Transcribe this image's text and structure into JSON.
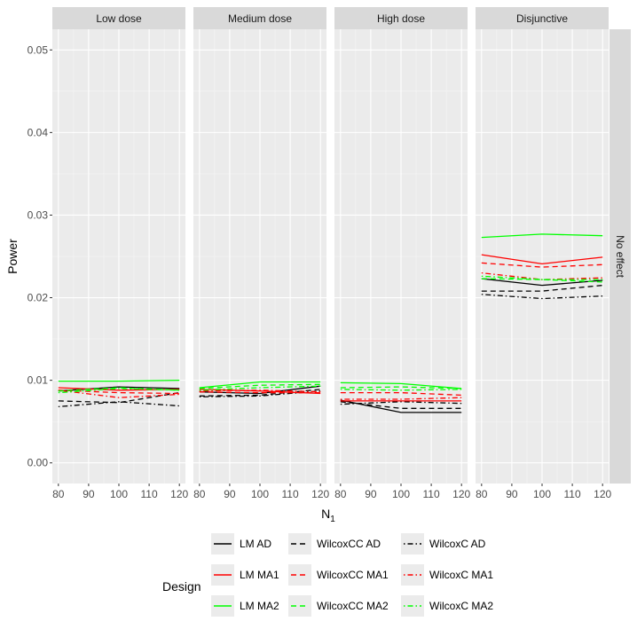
{
  "chart_data": {
    "type": "line",
    "ylabel": "Power",
    "xlabel_main": "N",
    "xlabel_sub": "1",
    "ylim": [
      -0.0025,
      0.0525
    ],
    "xlim": [
      78,
      122
    ],
    "y_ticks": [
      0.0,
      0.01,
      0.02,
      0.03,
      0.04,
      0.05
    ],
    "y_tick_labels": [
      "0.00",
      "0.01",
      "0.02",
      "0.03",
      "0.04",
      "0.05"
    ],
    "x_ticks": [
      80,
      90,
      100,
      110,
      120
    ],
    "x_tick_labels": [
      "80",
      "90",
      "100",
      "110",
      "120"
    ],
    "x": [
      80,
      100,
      120
    ],
    "row_strip": "No effect",
    "grid": true,
    "legend": {
      "title": "Design",
      "placement": "bottom",
      "entries": [
        "LM AD",
        "WilcoxCC AD",
        "WilcoxC AD",
        "LM MA1",
        "WilcoxCC MA1",
        "WilcoxC MA1",
        "LM MA2",
        "WilcoxCC MA2",
        "WilcoxC MA2"
      ]
    },
    "series_styles": {
      "LM AD": {
        "color": "#000000",
        "dash": "solid"
      },
      "WilcoxCC AD": {
        "color": "#000000",
        "dash": "dashed"
      },
      "WilcoxC AD": {
        "color": "#000000",
        "dash": "dotdash"
      },
      "LM MA1": {
        "color": "#ff0000",
        "dash": "solid"
      },
      "WilcoxCC MA1": {
        "color": "#ff0000",
        "dash": "dashed"
      },
      "WilcoxC MA1": {
        "color": "#ff0000",
        "dash": "dotdash"
      },
      "LM MA2": {
        "color": "#00ff00",
        "dash": "solid"
      },
      "WilcoxCC MA2": {
        "color": "#00ff00",
        "dash": "dashed"
      },
      "WilcoxC MA2": {
        "color": "#00ff00",
        "dash": "dotdash"
      }
    },
    "panels": [
      {
        "title": "Low dose",
        "series": [
          {
            "name": "LM AD",
            "values": [
              0.0087,
              0.0092,
              0.009
            ]
          },
          {
            "name": "WilcoxCC AD",
            "values": [
              0.0075,
              0.0073,
              0.0085
            ]
          },
          {
            "name": "WilcoxC AD",
            "values": [
              0.0068,
              0.0074,
              0.0069
            ]
          },
          {
            "name": "LM MA1",
            "values": [
              0.0091,
              0.0088,
              0.0089
            ]
          },
          {
            "name": "WilcoxCC MA1",
            "values": [
              0.0088,
              0.0085,
              0.0084
            ]
          },
          {
            "name": "WilcoxC MA1",
            "values": [
              0.0088,
              0.0079,
              0.0083
            ]
          },
          {
            "name": "LM MA2",
            "values": [
              0.0099,
              0.0099,
              0.01
            ]
          },
          {
            "name": "WilcoxCC MA2",
            "values": [
              0.0087,
              0.0091,
              0.0088
            ]
          },
          {
            "name": "WilcoxC MA2",
            "values": [
              0.0085,
              0.009,
              0.0088
            ]
          }
        ]
      },
      {
        "title": "Medium dose",
        "series": [
          {
            "name": "LM AD",
            "values": [
              0.0086,
              0.0084,
              0.0093
            ]
          },
          {
            "name": "WilcoxCC AD",
            "values": [
              0.0081,
              0.0082,
              0.0089
            ]
          },
          {
            "name": "WilcoxC AD",
            "values": [
              0.008,
              0.0081,
              0.0087
            ]
          },
          {
            "name": "LM MA1",
            "values": [
              0.0089,
              0.0087,
              0.0084
            ]
          },
          {
            "name": "WilcoxCC MA1",
            "values": [
              0.0086,
              0.0085,
              0.0085
            ]
          },
          {
            "name": "WilcoxC MA1",
            "values": [
              0.0087,
              0.0088,
              0.0086
            ]
          },
          {
            "name": "LM MA2",
            "values": [
              0.0091,
              0.0098,
              0.0098
            ]
          },
          {
            "name": "WilcoxCC MA2",
            "values": [
              0.009,
              0.0094,
              0.0095
            ]
          },
          {
            "name": "WilcoxC MA2",
            "values": [
              0.0088,
              0.0091,
              0.0093
            ]
          }
        ]
      },
      {
        "title": "High dose",
        "series": [
          {
            "name": "LM AD",
            "values": [
              0.0076,
              0.0061,
              0.0061
            ]
          },
          {
            "name": "WilcoxCC AD",
            "values": [
              0.0074,
              0.0066,
              0.0066
            ]
          },
          {
            "name": "WilcoxC AD",
            "values": [
              0.0071,
              0.0074,
              0.0072
            ]
          },
          {
            "name": "LM MA1",
            "values": [
              0.0075,
              0.0075,
              0.0075
            ]
          },
          {
            "name": "WilcoxCC MA1",
            "values": [
              0.0085,
              0.0085,
              0.0082
            ]
          },
          {
            "name": "WilcoxC MA1",
            "values": [
              0.0077,
              0.0077,
              0.0079
            ]
          },
          {
            "name": "LM MA2",
            "values": [
              0.0097,
              0.0096,
              0.009
            ]
          },
          {
            "name": "WilcoxCC MA2",
            "values": [
              0.0091,
              0.0092,
              0.009
            ]
          },
          {
            "name": "WilcoxC MA2",
            "values": [
              0.0089,
              0.0088,
              0.0089
            ]
          }
        ]
      },
      {
        "title": "Disjunctive",
        "series": [
          {
            "name": "LM AD",
            "values": [
              0.0223,
              0.0215,
              0.0221
            ]
          },
          {
            "name": "WilcoxCC AD",
            "values": [
              0.0208,
              0.0208,
              0.0215
            ]
          },
          {
            "name": "WilcoxC AD",
            "values": [
              0.0204,
              0.0199,
              0.0202
            ]
          },
          {
            "name": "LM MA1",
            "values": [
              0.0252,
              0.0241,
              0.0249
            ]
          },
          {
            "name": "WilcoxCC MA1",
            "values": [
              0.0242,
              0.0237,
              0.024
            ]
          },
          {
            "name": "WilcoxC MA1",
            "values": [
              0.023,
              0.0222,
              0.0224
            ]
          },
          {
            "name": "LM MA2",
            "values": [
              0.0273,
              0.0277,
              0.0275
            ]
          },
          {
            "name": "WilcoxCC MA2",
            "values": [
              0.0223,
              0.0222,
              0.0219
            ]
          },
          {
            "name": "WilcoxC MA2",
            "values": [
              0.0226,
              0.0222,
              0.0222
            ]
          }
        ]
      }
    ]
  }
}
